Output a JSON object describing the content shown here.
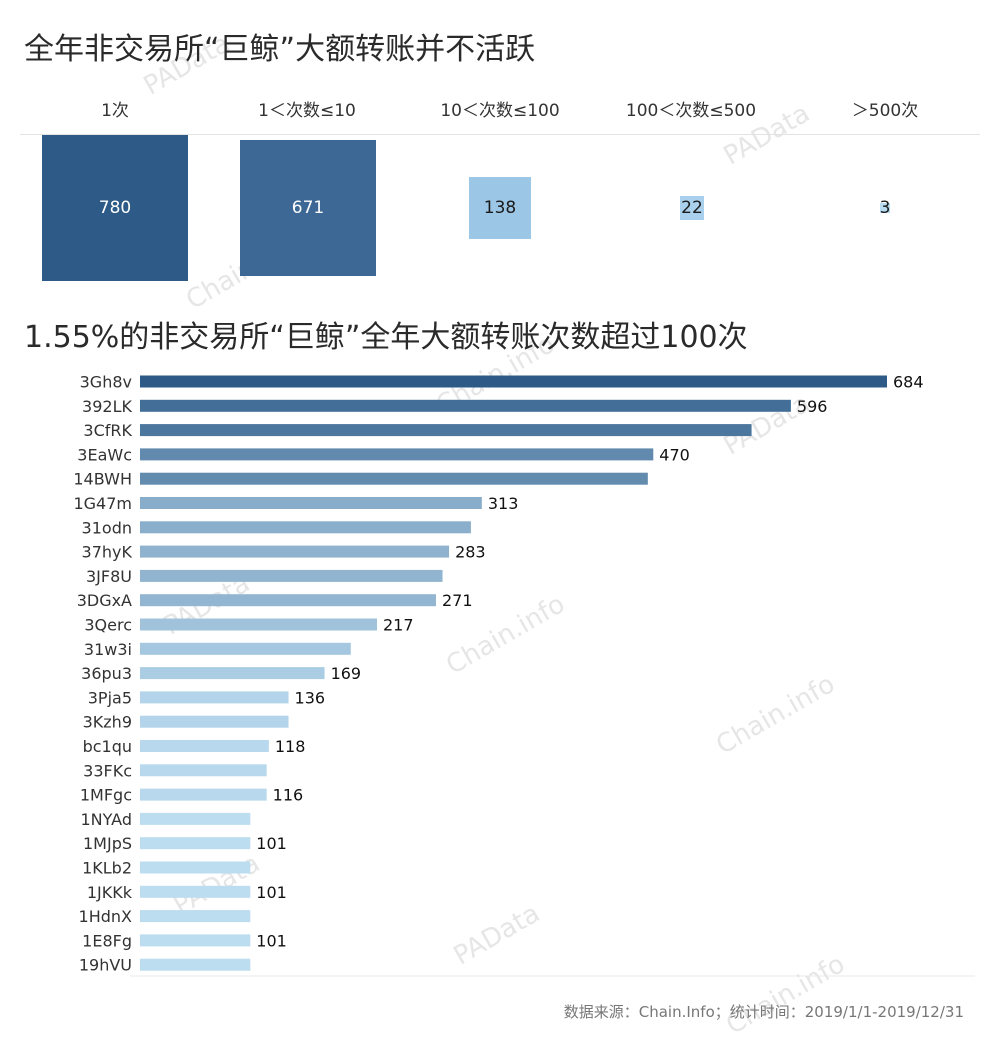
{
  "watermarks": [
    "PAData",
    "Chain.info"
  ],
  "chart_data": [
    {
      "type": "table",
      "title": "全年非交易所“巨鲸”大额转账并不活跃",
      "categories": [
        "1次",
        "1＜次数≤10",
        "10＜次数≤100",
        "100＜次数≤500",
        "＞500次"
      ],
      "values": [
        780,
        671,
        138,
        22,
        3
      ],
      "colors": [
        "#2d5a87",
        "#3d6896",
        "#9cc6e6",
        "#a9d0ec",
        "#b8dcf2"
      ]
    },
    {
      "type": "bar",
      "orientation": "horizontal",
      "title": "1.55%的非交易所“巨鲸”全年大额转账次数超过100次",
      "categories": [
        "3Gh8v",
        "392LK",
        "3CfRK",
        "3EaWc",
        "14BWH",
        "1G47m",
        "31odn",
        "37hyK",
        "3JF8U",
        "3DGxA",
        "3Qerc",
        "31w3i",
        "36pu3",
        "3Pja5",
        "3Kzh9",
        "bc1qu",
        "33FKc",
        "1MFgc",
        "1NYAd",
        "1MJpS",
        "1KLb2",
        "1JKKk",
        "1HdnX",
        "1E8Fg",
        "19hVU"
      ],
      "values": [
        684,
        596,
        560,
        470,
        465,
        313,
        303,
        283,
        277,
        271,
        217,
        193,
        169,
        136,
        136,
        118,
        116,
        116,
        101,
        101,
        101,
        101,
        101,
        101,
        101
      ],
      "labels": [
        "684",
        "596",
        "",
        "470",
        "",
        "313",
        "",
        "283",
        "",
        "271",
        "217",
        "",
        "169",
        "136",
        "",
        "118",
        "",
        "116",
        "",
        "101",
        "",
        "101",
        "",
        "101",
        ""
      ],
      "xlim": [
        0,
        700
      ],
      "color_low": "#bcdcf0",
      "color_high": "#2d5a87"
    }
  ],
  "source": "数据来源：Chain.Info；统计时间：2019/1/1-2019/12/31"
}
